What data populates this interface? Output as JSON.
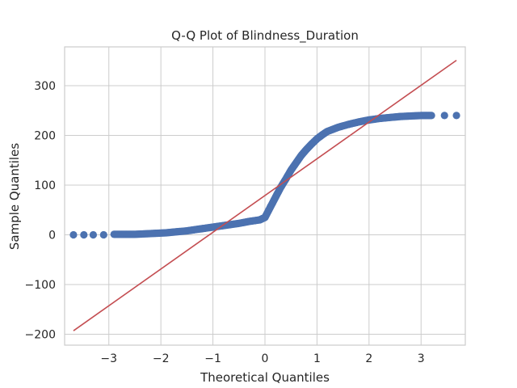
{
  "chart_data": {
    "type": "scatter",
    "title": "Q-Q Plot of Blindness_Duration",
    "xlabel": "Theoretical Quantiles",
    "ylabel": "Sample Quantiles",
    "xlim": [
      -3.85,
      3.85
    ],
    "ylim": [
      -222,
      378
    ],
    "xticks": [
      -3,
      -2,
      -1,
      0,
      1,
      2,
      3
    ],
    "xtick_labels": [
      "−3",
      "−2",
      "−1",
      "0",
      "1",
      "2",
      "3"
    ],
    "yticks": [
      -200,
      -100,
      0,
      100,
      200,
      300
    ],
    "ytick_labels": [
      "−200",
      "−100",
      "0",
      "100",
      "200",
      "300"
    ],
    "grid": true,
    "colors": {
      "points": "#4c72b0",
      "reference_line": "#c44e52"
    },
    "series": [
      {
        "kind": "sample_quantiles",
        "x": [
          -3.68,
          -3.48,
          -3.3,
          -3.1,
          -2.9,
          -2.7,
          -2.5,
          -2.3,
          -2.1,
          -1.9,
          -1.7,
          -1.5,
          -1.3,
          -1.1,
          -0.9,
          -0.7,
          -0.5,
          -0.3,
          -0.1,
          0.0,
          0.1,
          0.2,
          0.3,
          0.4,
          0.5,
          0.6,
          0.7,
          0.8,
          0.9,
          1.0,
          1.1,
          1.2,
          1.4,
          1.6,
          1.8,
          2.0,
          2.2,
          2.4,
          2.6,
          2.8,
          3.0,
          3.2,
          3.45,
          3.68
        ],
        "y": [
          0,
          0,
          0,
          0,
          1,
          1,
          1,
          2,
          3,
          4,
          6,
          8,
          11,
          14,
          17,
          20,
          23,
          27,
          30,
          35,
          55,
          75,
          95,
          112,
          130,
          145,
          160,
          172,
          183,
          193,
          201,
          208,
          216,
          222,
          227,
          231,
          234,
          236,
          238,
          239,
          240,
          240,
          240,
          240
        ]
      },
      {
        "kind": "reference_line",
        "x": [
          -3.68,
          3.68
        ],
        "y": [
          -193,
          351
        ]
      }
    ]
  }
}
